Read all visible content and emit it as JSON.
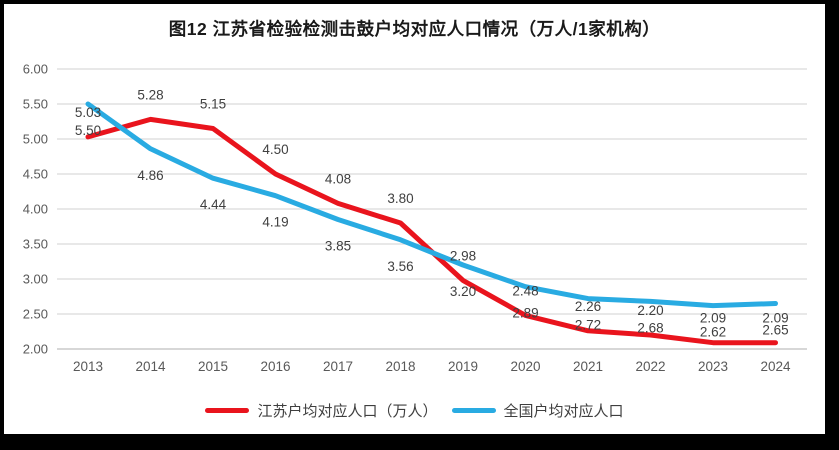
{
  "frame": {
    "background": "#ffffff",
    "border_color": "#000000"
  },
  "chart_data": {
    "type": "line",
    "title": "图12  江苏省检验检测击鼓户均对应人口情况（万人/1家机构）",
    "categories": [
      "2013",
      "2014",
      "2015",
      "2016",
      "2017",
      "2018",
      "2019",
      "2020",
      "2021",
      "2022",
      "2023",
      "2024"
    ],
    "series": [
      {
        "name": "江苏户均对应人口（万人）",
        "color": "#e9141d",
        "values": [
          5.03,
          5.28,
          5.15,
          4.5,
          4.08,
          3.8,
          2.98,
          2.48,
          2.26,
          2.2,
          2.09,
          2.09
        ],
        "label_position": "above"
      },
      {
        "name": "全国户均对应人口",
        "color": "#29abe2",
        "values": [
          5.5,
          4.86,
          4.44,
          4.19,
          3.85,
          3.56,
          3.2,
          2.89,
          2.72,
          2.68,
          2.62,
          2.65
        ],
        "label_position": "below"
      }
    ],
    "ylim": [
      2.0,
      6.0
    ],
    "ytick_step": 0.5,
    "ytick_labels": [
      "6.00",
      "5.50",
      "5.00",
      "4.50",
      "4.00",
      "3.50",
      "3.00",
      "2.50",
      "2.00"
    ],
    "grid": true,
    "legend_position": "bottom",
    "xlabel": "",
    "ylabel": "",
    "colors": {
      "gridline": "#d9d9d9",
      "axis_line": "#bfbfbf",
      "axis_text": "#595959",
      "data_label": "#404040"
    }
  }
}
